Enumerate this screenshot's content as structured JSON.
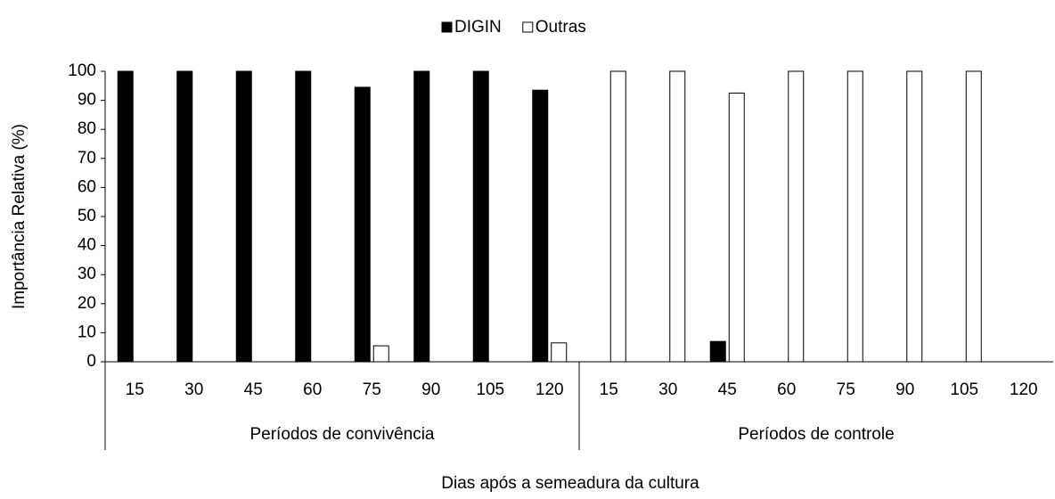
{
  "chart_data": {
    "type": "bar",
    "x_label": "Dias após a semeadura da cultura",
    "y_label": "Importância Relativa (%)",
    "categories": [
      "15",
      "30",
      "45",
      "60",
      "75",
      "90",
      "105",
      "120",
      "15",
      "30",
      "45",
      "60",
      "75",
      "90",
      "105",
      "120"
    ],
    "groups": [
      "Períodos de convivência",
      "Períodos de controle"
    ],
    "series": [
      {
        "name": "DIGIN",
        "color": "#000000",
        "values": [
          100,
          100,
          100,
          100,
          94.5,
          100,
          100,
          93.5,
          0,
          0,
          7,
          0,
          0,
          0,
          0,
          0
        ]
      },
      {
        "name": "Outras",
        "color": "#ffffff",
        "values": [
          0,
          0,
          0,
          0,
          5.5,
          0,
          0,
          6.5,
          100,
          100,
          92.5,
          100,
          100,
          100,
          100,
          0
        ]
      }
    ],
    "ylim": [
      0,
      100
    ],
    "yticks": [
      0,
      10,
      20,
      30,
      40,
      50,
      60,
      70,
      80,
      90,
      100
    ],
    "legend": "top"
  }
}
